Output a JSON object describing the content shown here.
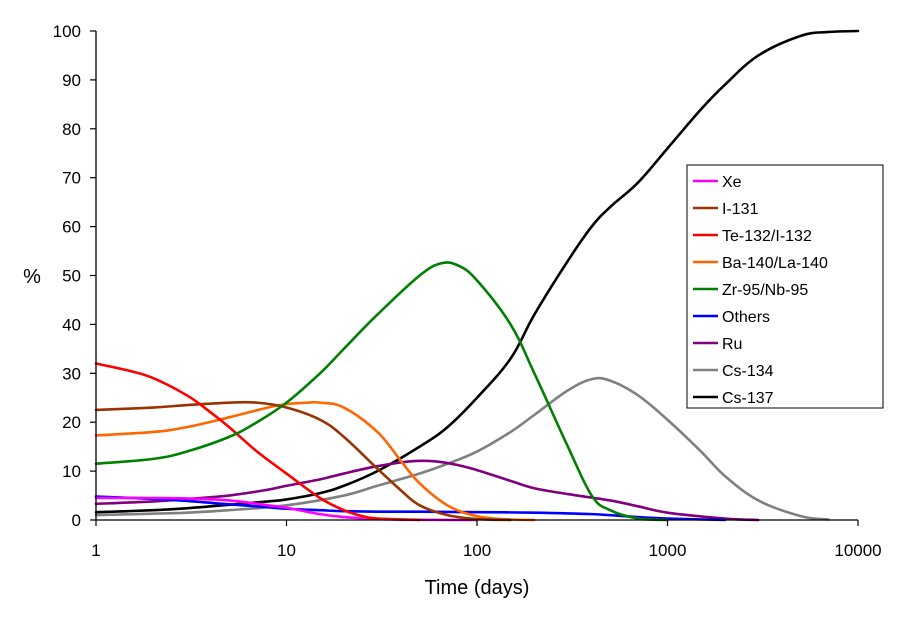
{
  "chart_data": {
    "type": "line",
    "title": "",
    "xlabel": "Time (days)",
    "ylabel": "%",
    "xscale": "log",
    "xlim": [
      1,
      10000
    ],
    "ylim": [
      0,
      100
    ],
    "xticks": [
      1,
      10,
      100,
      1000,
      10000
    ],
    "xtick_labels": [
      "1",
      "10",
      "100",
      "1000",
      "10000"
    ],
    "yticks": [
      0,
      10,
      20,
      30,
      40,
      50,
      60,
      70,
      80,
      90,
      100
    ],
    "ytick_labels": [
      "0",
      "10",
      "20",
      "30",
      "40",
      "50",
      "60",
      "70",
      "80",
      "90",
      "100"
    ],
    "grid": false,
    "legend_position": "right",
    "series": [
      {
        "name": "Xe",
        "color": "#ff00ff",
        "x": [
          1,
          2,
          3,
          5,
          8,
          10,
          15,
          20,
          30,
          50,
          100
        ],
        "y": [
          4.5,
          4.5,
          4.4,
          4.0,
          3.0,
          2.5,
          1.2,
          0.6,
          0.2,
          0.05,
          0
        ]
      },
      {
        "name": "I-131",
        "color": "#993300",
        "x": [
          1,
          2,
          3,
          5,
          7,
          10,
          15,
          20,
          30,
          40,
          50,
          70,
          100,
          150
        ],
        "y": [
          22.5,
          23.0,
          23.5,
          24.0,
          24.0,
          23.0,
          20.5,
          17.0,
          10.5,
          6.0,
          3.0,
          1.0,
          0.2,
          0
        ]
      },
      {
        "name": "Te-132/I-132",
        "color": "#ff0000",
        "x": [
          1,
          1.5,
          2,
          3,
          4,
          5,
          7,
          10,
          15,
          20,
          25,
          30,
          50
        ],
        "y": [
          32.0,
          30.5,
          29.0,
          25.5,
          22.0,
          19.0,
          14.0,
          9.5,
          4.5,
          2.0,
          0.8,
          0.3,
          0
        ]
      },
      {
        "name": "Ba-140/La-140",
        "color": "#ff6600",
        "x": [
          1,
          2,
          3,
          5,
          8,
          10,
          13,
          15,
          20,
          30,
          40,
          50,
          70,
          100,
          150,
          200
        ],
        "y": [
          17.3,
          18.0,
          19.0,
          21.0,
          23.0,
          23.7,
          24.0,
          24.0,
          23.0,
          18.0,
          12.0,
          7.5,
          3.0,
          0.8,
          0.1,
          0
        ]
      },
      {
        "name": "Zr-95/Nb-95",
        "color": "#008000",
        "x": [
          1,
          2,
          3,
          5,
          7,
          10,
          15,
          20,
          30,
          50,
          65,
          80,
          100,
          150,
          200,
          300,
          400,
          500,
          700,
          1000
        ],
        "y": [
          11.5,
          12.5,
          14.0,
          17.0,
          20.0,
          24.0,
          30.0,
          35.0,
          42.0,
          50.0,
          52.5,
          52.0,
          49.0,
          40.0,
          30.0,
          15.0,
          5.0,
          2.0,
          0.3,
          0
        ]
      },
      {
        "name": "Others",
        "color": "#0000ff",
        "x": [
          1,
          2,
          3,
          5,
          7,
          10,
          15,
          20,
          30,
          50,
          100,
          200,
          400,
          700,
          1000,
          2000
        ],
        "y": [
          4.8,
          4.3,
          3.9,
          3.2,
          2.8,
          2.3,
          2.0,
          1.8,
          1.7,
          1.7,
          1.6,
          1.5,
          1.2,
          0.6,
          0.3,
          0
        ]
      },
      {
        "name": "Ru",
        "color": "#800080",
        "x": [
          1,
          2,
          3,
          5,
          8,
          10,
          15,
          20,
          30,
          45,
          60,
          80,
          100,
          150,
          200,
          300,
          500,
          700,
          1000,
          2000,
          3000
        ],
        "y": [
          3.3,
          3.8,
          4.3,
          5.0,
          6.2,
          7.0,
          8.3,
          9.5,
          11.0,
          12.0,
          12.0,
          11.2,
          10.2,
          8.0,
          6.5,
          5.3,
          4.0,
          2.8,
          1.5,
          0.3,
          0
        ]
      },
      {
        "name": "Cs-134",
        "color": "#808080",
        "x": [
          1,
          2,
          3,
          5,
          10,
          20,
          30,
          50,
          70,
          100,
          150,
          200,
          300,
          400,
          500,
          700,
          1000,
          1500,
          2000,
          3000,
          5000,
          7000
        ],
        "y": [
          1.0,
          1.3,
          1.5,
          2.0,
          3.0,
          5.0,
          7.0,
          9.5,
          11.5,
          14.0,
          18.0,
          21.5,
          26.5,
          28.8,
          28.5,
          25.5,
          20.5,
          14.0,
          9.0,
          4.0,
          0.8,
          0.1
        ]
      },
      {
        "name": "Cs-137",
        "color": "#000000",
        "x": [
          1,
          2,
          3,
          5,
          8,
          10,
          15,
          20,
          30,
          50,
          70,
          100,
          150,
          200,
          300,
          400,
          500,
          700,
          1000,
          1500,
          2000,
          3000,
          5000,
          7000,
          10000
        ],
        "y": [
          1.6,
          2.0,
          2.4,
          3.1,
          3.8,
          4.2,
          5.5,
          7.0,
          10.0,
          15.0,
          19.0,
          25.0,
          33.0,
          42.0,
          53.0,
          60.0,
          64.0,
          69.0,
          76.0,
          84.0,
          89.0,
          95.0,
          99.0,
          99.8,
          100.0
        ]
      }
    ]
  }
}
